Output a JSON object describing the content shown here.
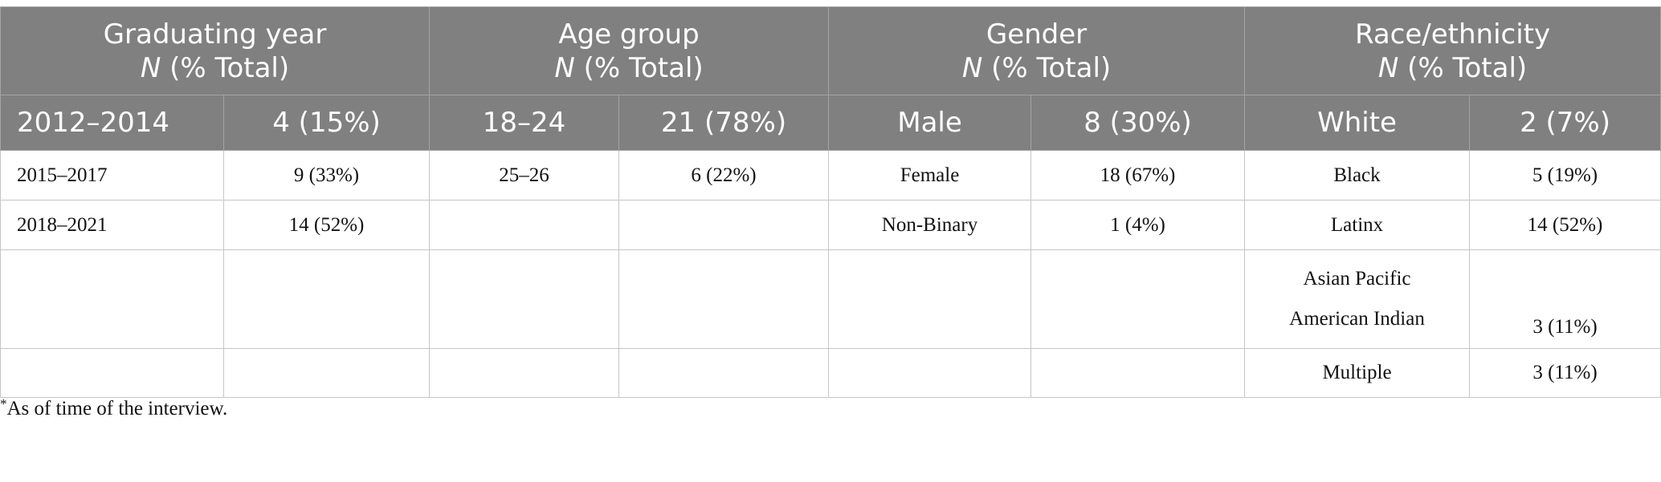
{
  "header": {
    "groups": [
      {
        "title": "Graduating year",
        "n_label": "N",
        "total_label": "(% Total)"
      },
      {
        "title": "Age group",
        "n_label": "N",
        "total_label": "(% Total)"
      },
      {
        "title": "Gender",
        "n_label": "N",
        "total_label": "(% Total)"
      },
      {
        "title": "Race/ethnicity",
        "n_label": "N",
        "total_label": "(% Total)"
      }
    ],
    "sub": [
      "2012–2014",
      "4 (15%)",
      "18–24",
      "21 (78%)",
      "Male",
      "8 (30%)",
      "White",
      "2 (7%)"
    ]
  },
  "rows": [
    [
      "2015–2017",
      "9 (33%)",
      "25–26",
      "6 (22%)",
      "Female",
      "18 (67%)",
      "Black",
      "5 (19%)"
    ],
    [
      "2018–2021",
      "14 (52%)",
      "",
      "",
      "Non-Binary",
      "1 (4%)",
      "Latinx",
      "14 (52%)"
    ],
    [
      "",
      "",
      "",
      "",
      "",
      "",
      "",
      "3 (11%)"
    ],
    [
      "",
      "",
      "",
      "",
      "",
      "",
      "Multiple",
      "3 (11%)"
    ]
  ],
  "race_multiline": {
    "line1": "Asian Pacific",
    "line2": "American Indian"
  },
  "footnote": {
    "mark": "*",
    "text": "As of time of the interview."
  }
}
